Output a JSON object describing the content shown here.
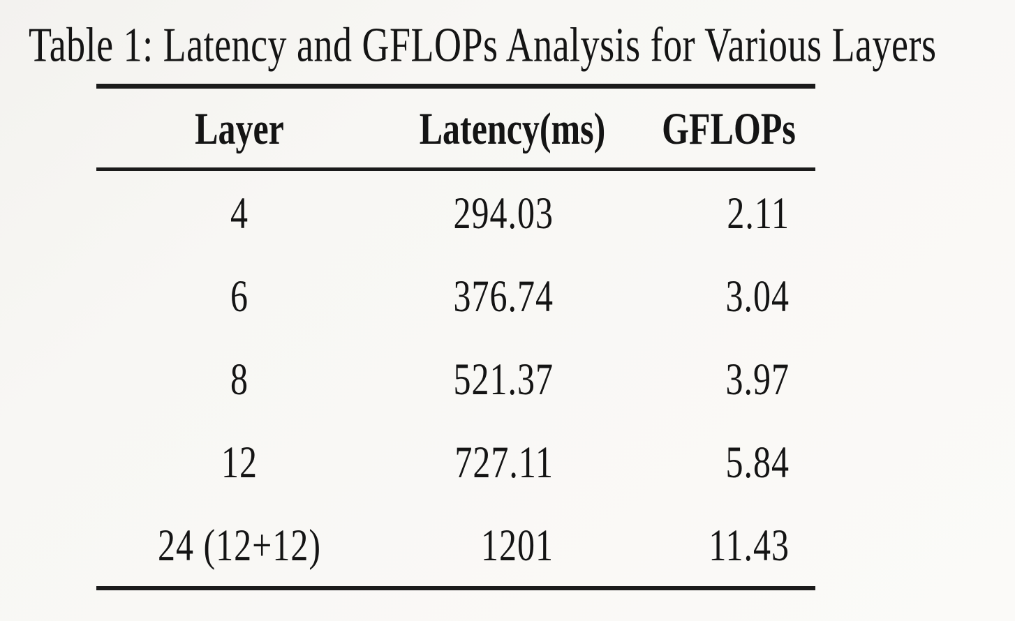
{
  "caption": "Table 1: Latency and GFLOPs Analysis for Various Layers",
  "table": {
    "columns": [
      "Layer",
      "Latency(ms)",
      "GFLOPs"
    ],
    "rows": [
      {
        "layer": "4",
        "latency_ms": "294.03",
        "gflops": "2.11"
      },
      {
        "layer": "6",
        "latency_ms": "376.74",
        "gflops": "3.04"
      },
      {
        "layer": "8",
        "latency_ms": "521.37",
        "gflops": "3.97"
      },
      {
        "layer": "12",
        "latency_ms": "727.11",
        "gflops": "5.84"
      },
      {
        "layer": "24 (12+12)",
        "latency_ms": "1201",
        "gflops": "11.43"
      }
    ]
  },
  "chart_data": {
    "type": "table",
    "title": "Table 1: Latency and GFLOPs Analysis for Various Layers",
    "columns": [
      "Layer",
      "Latency(ms)",
      "GFLOPs"
    ],
    "rows": [
      [
        "4",
        294.03,
        2.11
      ],
      [
        "6",
        376.74,
        3.04
      ],
      [
        "8",
        521.37,
        3.97
      ],
      [
        "12",
        727.11,
        5.84
      ],
      [
        "24 (12+12)",
        1201,
        11.43
      ]
    ]
  },
  "colors": {
    "text": "#141414",
    "rule": "#1b1b1b",
    "background": "#f8f7f4"
  }
}
